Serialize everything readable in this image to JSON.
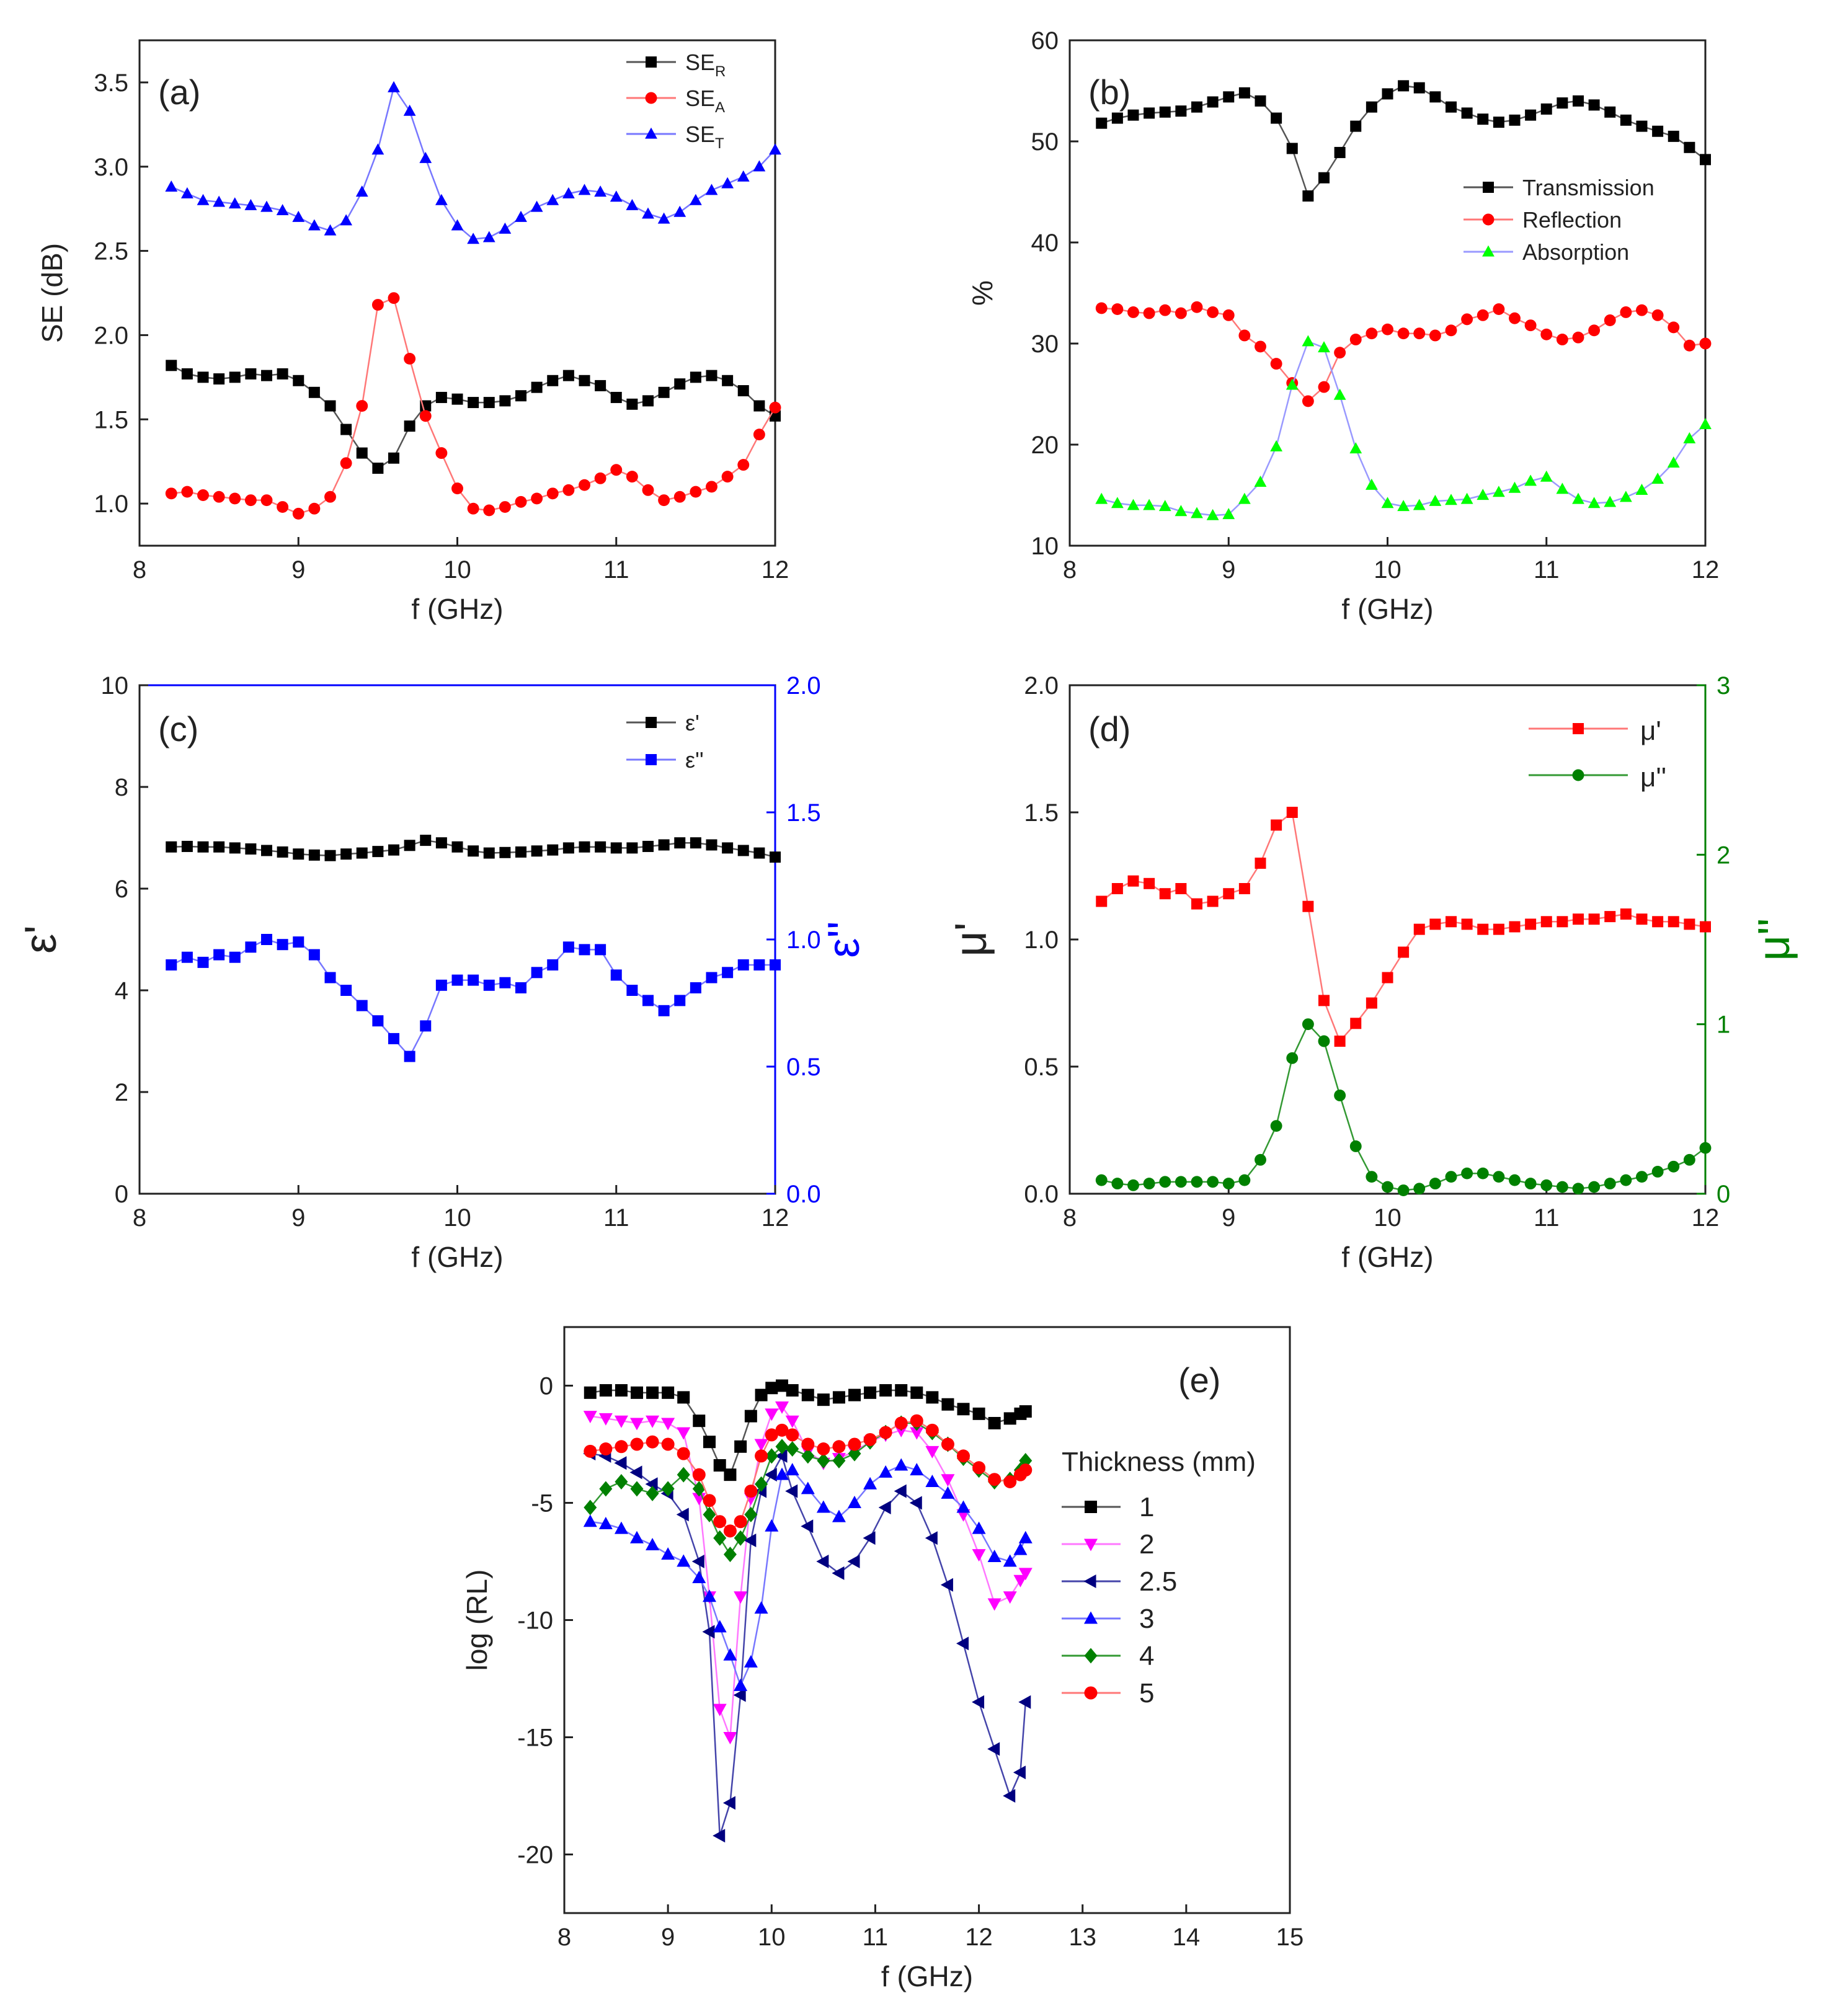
{
  "chart_data": [
    {
      "panel": "(a)",
      "type": "line",
      "xlabel": "f (GHz)",
      "ylabel": "SE (dB)",
      "xlim": [
        8,
        12
      ],
      "ylim": [
        0.75,
        3.75
      ],
      "xticks": [
        "8",
        "9",
        "10",
        "11",
        "12"
      ],
      "yticks": [
        "1.0",
        "1.5",
        "2.0",
        "2.5",
        "3.0",
        "3.5"
      ],
      "ytick_values": [
        1.0,
        1.5,
        2.0,
        2.5,
        3.0,
        3.5
      ],
      "legend": "top-right",
      "x": [
        8.2,
        8.3,
        8.4,
        8.5,
        8.6,
        8.7,
        8.8,
        8.9,
        9.0,
        9.1,
        9.2,
        9.3,
        9.4,
        9.5,
        9.6,
        9.7,
        9.8,
        9.9,
        10.0,
        10.1,
        10.2,
        10.3,
        10.4,
        10.5,
        10.6,
        10.7,
        10.8,
        10.9,
        11.0,
        11.1,
        11.2,
        11.3,
        11.4,
        11.5,
        11.6,
        11.7,
        11.8,
        11.9,
        12.0
      ],
      "series": [
        {
          "name": "SE",
          "sub": "R",
          "color": "#000000",
          "marker": "square",
          "values": [
            1.82,
            1.77,
            1.75,
            1.74,
            1.75,
            1.77,
            1.76,
            1.77,
            1.73,
            1.66,
            1.58,
            1.44,
            1.3,
            1.21,
            1.27,
            1.46,
            1.58,
            1.63,
            1.62,
            1.6,
            1.6,
            1.61,
            1.64,
            1.69,
            1.73,
            1.76,
            1.73,
            1.7,
            1.63,
            1.59,
            1.61,
            1.66,
            1.71,
            1.75,
            1.76,
            1.73,
            1.67,
            1.58,
            1.52
          ]
        },
        {
          "name": "SE",
          "sub": "A",
          "color": "#ff0000",
          "marker": "circle",
          "values": [
            1.06,
            1.07,
            1.05,
            1.04,
            1.03,
            1.02,
            1.02,
            0.98,
            0.94,
            0.97,
            1.04,
            1.24,
            1.58,
            2.18,
            2.22,
            1.86,
            1.52,
            1.3,
            1.09,
            0.97,
            0.96,
            0.98,
            1.01,
            1.03,
            1.06,
            1.08,
            1.11,
            1.15,
            1.2,
            1.16,
            1.08,
            1.02,
            1.04,
            1.07,
            1.1,
            1.16,
            1.23,
            1.41,
            1.57
          ]
        },
        {
          "name": "SE",
          "sub": "T",
          "color": "#0000ff",
          "marker": "triangle",
          "values": [
            2.88,
            2.84,
            2.8,
            2.79,
            2.78,
            2.77,
            2.76,
            2.74,
            2.7,
            2.65,
            2.62,
            2.68,
            2.85,
            3.1,
            3.47,
            3.33,
            3.05,
            2.8,
            2.65,
            2.57,
            2.58,
            2.63,
            2.7,
            2.76,
            2.8,
            2.84,
            2.86,
            2.85,
            2.82,
            2.77,
            2.72,
            2.69,
            2.73,
            2.8,
            2.86,
            2.9,
            2.94,
            3.0,
            3.1
          ]
        }
      ]
    },
    {
      "panel": "(b)",
      "type": "line",
      "xlabel": "f (GHz)",
      "ylabel": "%",
      "xlim": [
        8,
        12
      ],
      "ylim": [
        10,
        60
      ],
      "xticks": [
        "8",
        "9",
        "10",
        "11",
        "12"
      ],
      "yticks": [
        "10",
        "20",
        "30",
        "40",
        "50",
        "60"
      ],
      "ytick_values": [
        10,
        20,
        30,
        40,
        50,
        60
      ],
      "legend": "center-right",
      "x": [
        8.2,
        8.3,
        8.4,
        8.5,
        8.6,
        8.7,
        8.8,
        8.9,
        9.0,
        9.1,
        9.2,
        9.3,
        9.4,
        9.5,
        9.6,
        9.7,
        9.8,
        9.9,
        10.0,
        10.1,
        10.2,
        10.3,
        10.4,
        10.5,
        10.6,
        10.7,
        10.8,
        10.9,
        11.0,
        11.1,
        11.2,
        11.3,
        11.4,
        11.5,
        11.6,
        11.7,
        11.8,
        11.9,
        12.0
      ],
      "series": [
        {
          "name": "Transmission",
          "color": "#000000",
          "marker": "square",
          "values": [
            51.8,
            52.3,
            52.6,
            52.8,
            52.9,
            53.0,
            53.4,
            53.9,
            54.4,
            54.8,
            54.0,
            52.3,
            49.3,
            44.6,
            46.4,
            48.9,
            51.5,
            53.4,
            54.7,
            55.5,
            55.3,
            54.4,
            53.4,
            52.8,
            52.2,
            51.9,
            52.1,
            52.6,
            53.2,
            53.8,
            54.0,
            53.6,
            52.9,
            52.1,
            51.5,
            51.0,
            50.5,
            49.4,
            48.2
          ]
        },
        {
          "name": "Reflection",
          "color": "#ff0000",
          "marker": "circle",
          "values": [
            33.5,
            33.4,
            33.1,
            33.0,
            33.3,
            33.0,
            33.6,
            33.1,
            32.8,
            30.8,
            29.7,
            28.0,
            26.1,
            24.3,
            25.7,
            29.1,
            30.4,
            31.0,
            31.4,
            31.0,
            31.0,
            30.8,
            31.3,
            32.4,
            32.8,
            33.4,
            32.5,
            31.8,
            30.9,
            30.4,
            30.6,
            31.3,
            32.3,
            33.1,
            33.3,
            32.8,
            31.6,
            29.8,
            30.0
          ]
        },
        {
          "name": "Absorption",
          "color": "#00ff00",
          "marker": "triangle",
          "values": [
            14.6,
            14.2,
            14.0,
            14.0,
            13.9,
            13.4,
            13.2,
            13.0,
            13.1,
            14.6,
            16.3,
            19.8,
            25.9,
            30.2,
            29.6,
            24.9,
            19.6,
            16.0,
            14.2,
            13.9,
            14.0,
            14.4,
            14.5,
            14.6,
            15.0,
            15.3,
            15.7,
            16.4,
            16.8,
            15.6,
            14.6,
            14.2,
            14.3,
            14.8,
            15.5,
            16.6,
            18.2,
            20.6,
            22.0
          ]
        }
      ]
    },
    {
      "panel": "(c)",
      "type": "line",
      "xlabel": "f (GHz)",
      "ylabel": "ε'",
      "ylabel_right": "ε''",
      "right_axis_color": "#0000ff",
      "xlim": [
        8,
        12
      ],
      "ylim": [
        0,
        10
      ],
      "ylim_right": [
        0,
        2
      ],
      "xticks": [
        "8",
        "9",
        "10",
        "11",
        "12"
      ],
      "yticks": [
        "0",
        "2",
        "4",
        "6",
        "8",
        "10"
      ],
      "ytick_values": [
        0,
        2,
        4,
        6,
        8,
        10
      ],
      "yticks_right": [
        "0.0",
        "0.5",
        "1.0",
        "1.5",
        "2.0"
      ],
      "ytick_right_values": [
        0.0,
        0.5,
        1.0,
        1.5,
        2.0
      ],
      "legend": "top-right",
      "x": [
        8.2,
        8.3,
        8.4,
        8.5,
        8.6,
        8.7,
        8.8,
        8.9,
        9.0,
        9.1,
        9.2,
        9.3,
        9.4,
        9.5,
        9.6,
        9.7,
        9.8,
        9.9,
        10.0,
        10.1,
        10.2,
        10.3,
        10.4,
        10.5,
        10.6,
        10.7,
        10.8,
        10.9,
        11.0,
        11.1,
        11.2,
        11.3,
        11.4,
        11.5,
        11.6,
        11.7,
        11.8,
        11.9,
        12.0
      ],
      "series": [
        {
          "name": "ε'",
          "color": "#000000",
          "marker": "square",
          "axis": "left",
          "values": [
            6.82,
            6.83,
            6.82,
            6.82,
            6.8,
            6.78,
            6.75,
            6.72,
            6.68,
            6.66,
            6.65,
            6.68,
            6.7,
            6.73,
            6.76,
            6.85,
            6.95,
            6.9,
            6.82,
            6.74,
            6.7,
            6.71,
            6.72,
            6.74,
            6.76,
            6.8,
            6.82,
            6.82,
            6.8,
            6.8,
            6.83,
            6.86,
            6.9,
            6.9,
            6.86,
            6.8,
            6.75,
            6.7,
            6.62
          ]
        },
        {
          "name": "ε''",
          "color": "#0000ff",
          "marker": "square",
          "axis": "right",
          "values": [
            0.9,
            0.93,
            0.91,
            0.94,
            0.93,
            0.97,
            1.0,
            0.98,
            0.99,
            0.94,
            0.85,
            0.8,
            0.74,
            0.68,
            0.61,
            0.54,
            0.66,
            0.82,
            0.84,
            0.84,
            0.82,
            0.83,
            0.81,
            0.87,
            0.9,
            0.97,
            0.96,
            0.96,
            0.86,
            0.8,
            0.76,
            0.72,
            0.76,
            0.81,
            0.85,
            0.87,
            0.9,
            0.9,
            0.9
          ]
        }
      ]
    },
    {
      "panel": "(d)",
      "type": "line",
      "xlabel": "f (GHz)",
      "ylabel": "μ'",
      "ylabel_right": "μ''",
      "right_axis_color": "#008000",
      "xlim": [
        8,
        12
      ],
      "ylim": [
        0,
        2
      ],
      "ylim_right": [
        0,
        3
      ],
      "xticks": [
        "8",
        "9",
        "10",
        "11",
        "12"
      ],
      "yticks": [
        "0.0",
        "0.5",
        "1.0",
        "1.5",
        "2.0"
      ],
      "ytick_values": [
        0.0,
        0.5,
        1.0,
        1.5,
        2.0
      ],
      "yticks_right": [
        "0",
        "1",
        "2",
        "3"
      ],
      "ytick_right_values": [
        0,
        1,
        2,
        3
      ],
      "legend": "top-right",
      "x": [
        8.2,
        8.3,
        8.4,
        8.5,
        8.6,
        8.7,
        8.8,
        8.9,
        9.0,
        9.1,
        9.2,
        9.3,
        9.4,
        9.5,
        9.6,
        9.7,
        9.8,
        9.9,
        10.0,
        10.1,
        10.2,
        10.3,
        10.4,
        10.5,
        10.6,
        10.7,
        10.8,
        10.9,
        11.0,
        11.1,
        11.2,
        11.3,
        11.4,
        11.5,
        11.6,
        11.7,
        11.8,
        11.9,
        12.0
      ],
      "series": [
        {
          "name": "μ'",
          "color": "#ff0000",
          "marker": "square",
          "axis": "left",
          "values": [
            1.15,
            1.2,
            1.23,
            1.22,
            1.18,
            1.2,
            1.14,
            1.15,
            1.18,
            1.2,
            1.3,
            1.45,
            1.5,
            1.13,
            0.76,
            0.6,
            0.67,
            0.75,
            0.85,
            0.95,
            1.04,
            1.06,
            1.07,
            1.06,
            1.04,
            1.04,
            1.05,
            1.06,
            1.07,
            1.07,
            1.08,
            1.08,
            1.09,
            1.1,
            1.08,
            1.07,
            1.07,
            1.06,
            1.05
          ]
        },
        {
          "name": "μ''",
          "color": "#008000",
          "marker": "circle",
          "axis": "right",
          "values": [
            0.08,
            0.06,
            0.05,
            0.06,
            0.07,
            0.07,
            0.07,
            0.07,
            0.06,
            0.08,
            0.2,
            0.4,
            0.8,
            1.0,
            0.9,
            0.58,
            0.28,
            0.1,
            0.04,
            0.02,
            0.03,
            0.06,
            0.1,
            0.12,
            0.12,
            0.1,
            0.08,
            0.06,
            0.05,
            0.04,
            0.03,
            0.04,
            0.06,
            0.08,
            0.1,
            0.13,
            0.16,
            0.2,
            0.27
          ]
        }
      ]
    },
    {
      "panel": "(e)",
      "type": "line",
      "xlabel": "f (GHz)",
      "ylabel": "log (RL)",
      "xlim": [
        8,
        15
      ],
      "ylim": [
        -22.5,
        2.5
      ],
      "xticks": [
        "8",
        "9",
        "10",
        "11",
        "12",
        "13",
        "14",
        "15"
      ],
      "yticks": [
        "0",
        "-5",
        "-10",
        "-15",
        "-20"
      ],
      "ytick_values": [
        0,
        -5,
        -10,
        -15,
        -20
      ],
      "legend_title": "Thickness (mm)",
      "legend": "right-center",
      "x": [
        8.25,
        8.4,
        8.55,
        8.7,
        8.85,
        9.0,
        9.15,
        9.3,
        9.4,
        9.5,
        9.6,
        9.7,
        9.8,
        9.9,
        10.0,
        10.1,
        10.2,
        10.35,
        10.5,
        10.65,
        10.8,
        10.95,
        11.1,
        11.25,
        11.4,
        11.55,
        11.7,
        11.85,
        12.0,
        12.15,
        12.3,
        12.4,
        12.45
      ],
      "series": [
        {
          "name": "1",
          "color": "#000000",
          "marker": "square",
          "values": [
            -0.3,
            -0.2,
            -0.2,
            -0.3,
            -0.3,
            -0.3,
            -0.5,
            -1.5,
            -2.4,
            -3.4,
            -3.8,
            -2.6,
            -1.3,
            -0.4,
            -0.1,
            0.0,
            -0.2,
            -0.4,
            -0.6,
            -0.5,
            -0.4,
            -0.3,
            -0.2,
            -0.2,
            -0.3,
            -0.5,
            -0.8,
            -1.0,
            -1.2,
            -1.6,
            -1.4,
            -1.2,
            -1.1
          ]
        },
        {
          "name": "2",
          "color": "#ff00ff",
          "marker": "triangle-down",
          "values": [
            -1.3,
            -1.4,
            -1.5,
            -1.6,
            -1.5,
            -1.6,
            -2.0,
            -4.8,
            -9.0,
            -13.8,
            -15.0,
            -9.0,
            -4.8,
            -2.5,
            -1.2,
            -0.9,
            -1.5,
            -2.8,
            -3.3,
            -3.1,
            -2.8,
            -2.4,
            -2.1,
            -1.9,
            -2.0,
            -2.8,
            -4.0,
            -5.5,
            -7.2,
            -9.3,
            -9.0,
            -8.3,
            -8.0
          ]
        },
        {
          "name": "2.5",
          "color": "#000080",
          "marker": "triangle-left",
          "values": [
            -2.9,
            -3.0,
            -3.3,
            -3.7,
            -4.2,
            -4.6,
            -5.5,
            -7.5,
            -10.5,
            -19.2,
            -17.8,
            -13.2,
            -6.6,
            -4.5,
            -3.8,
            -3.0,
            -4.5,
            -6.0,
            -7.5,
            -8.0,
            -7.5,
            -6.5,
            -5.2,
            -4.5,
            -5.0,
            -6.5,
            -8.5,
            -11.0,
            -13.5,
            -15.5,
            -17.5,
            -16.5,
            -13.5
          ]
        },
        {
          "name": "3",
          "color": "#0000ff",
          "marker": "triangle",
          "values": [
            -5.8,
            -5.9,
            -6.1,
            -6.5,
            -6.8,
            -7.2,
            -7.5,
            -8.2,
            -9.0,
            -10.3,
            -11.5,
            -12.8,
            -11.8,
            -9.5,
            -6.0,
            -3.8,
            -3.6,
            -4.4,
            -5.2,
            -5.6,
            -5.0,
            -4.2,
            -3.7,
            -3.4,
            -3.6,
            -4.1,
            -4.6,
            -5.2,
            -6.1,
            -7.3,
            -7.5,
            -7.0,
            -6.5
          ]
        },
        {
          "name": "4",
          "color": "#008000",
          "marker": "diamond",
          "values": [
            -5.2,
            -4.4,
            -4.1,
            -4.4,
            -4.6,
            -4.4,
            -3.8,
            -4.4,
            -5.5,
            -6.5,
            -7.2,
            -6.5,
            -5.5,
            -4.2,
            -3.0,
            -2.6,
            -2.7,
            -3.0,
            -3.2,
            -3.2,
            -2.9,
            -2.4,
            -2.0,
            -1.6,
            -1.6,
            -2.0,
            -2.5,
            -3.1,
            -3.6,
            -4.1,
            -4.0,
            -3.6,
            -3.2
          ]
        },
        {
          "name": "5",
          "color": "#ff0000",
          "marker": "circle",
          "values": [
            -2.8,
            -2.7,
            -2.6,
            -2.5,
            -2.4,
            -2.5,
            -2.9,
            -3.8,
            -4.9,
            -5.8,
            -6.2,
            -5.8,
            -4.5,
            -3.0,
            -2.1,
            -1.9,
            -2.1,
            -2.5,
            -2.7,
            -2.6,
            -2.5,
            -2.3,
            -2.0,
            -1.6,
            -1.5,
            -1.9,
            -2.5,
            -3.0,
            -3.5,
            -4.0,
            -4.1,
            -3.8,
            -3.6
          ]
        }
      ]
    }
  ]
}
